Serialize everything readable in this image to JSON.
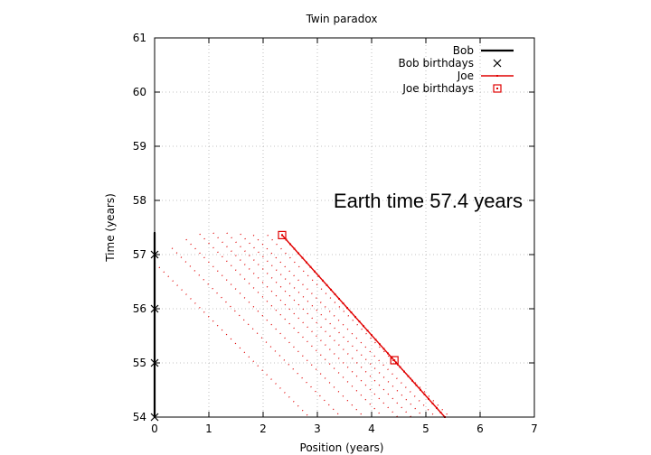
{
  "chart_data": {
    "type": "line",
    "title": "Twin paradox",
    "xlabel": "Position (years)",
    "ylabel": "Time (years)",
    "xlim": [
      0,
      7
    ],
    "ylim": [
      54,
      61
    ],
    "x_ticks": [
      "0",
      "1",
      "2",
      "3",
      "4",
      "5",
      "6",
      "7"
    ],
    "y_ticks": [
      "54",
      "55",
      "56",
      "57",
      "58",
      "59",
      "60",
      "61"
    ],
    "grid": true,
    "legend_position": "top-right",
    "annotation": "Earth time 57.4 years",
    "colors": {
      "bob": "#000000",
      "joe": "#e00000",
      "grid": "#b0b0b0"
    },
    "series": [
      {
        "name": "Bob",
        "style": "line-with-points",
        "x": [
          0,
          0
        ],
        "y": [
          54,
          57.4
        ]
      },
      {
        "name": "Bob birthdays",
        "style": "x-marker",
        "x": [
          0,
          0,
          0,
          0
        ],
        "y": [
          54,
          55,
          56,
          57
        ]
      },
      {
        "name": "Joe",
        "style": "line-with-points",
        "x": [
          2.35,
          5.35
        ],
        "y": [
          57.36,
          54.0
        ]
      },
      {
        "name": "Joe birthdays",
        "style": "square-marker",
        "x": [
          2.35,
          4.42
        ],
        "y": [
          57.36,
          55.05
        ]
      }
    ],
    "light_lines": {
      "x": [
        0.0,
        0.32,
        0.58,
        0.83,
        1.08,
        1.33,
        1.58,
        1.82,
        2.08
      ],
      "y": [
        56.85,
        57.12,
        57.28,
        57.38,
        57.4,
        57.4,
        57.38,
        57.36,
        57.36
      ]
    }
  }
}
